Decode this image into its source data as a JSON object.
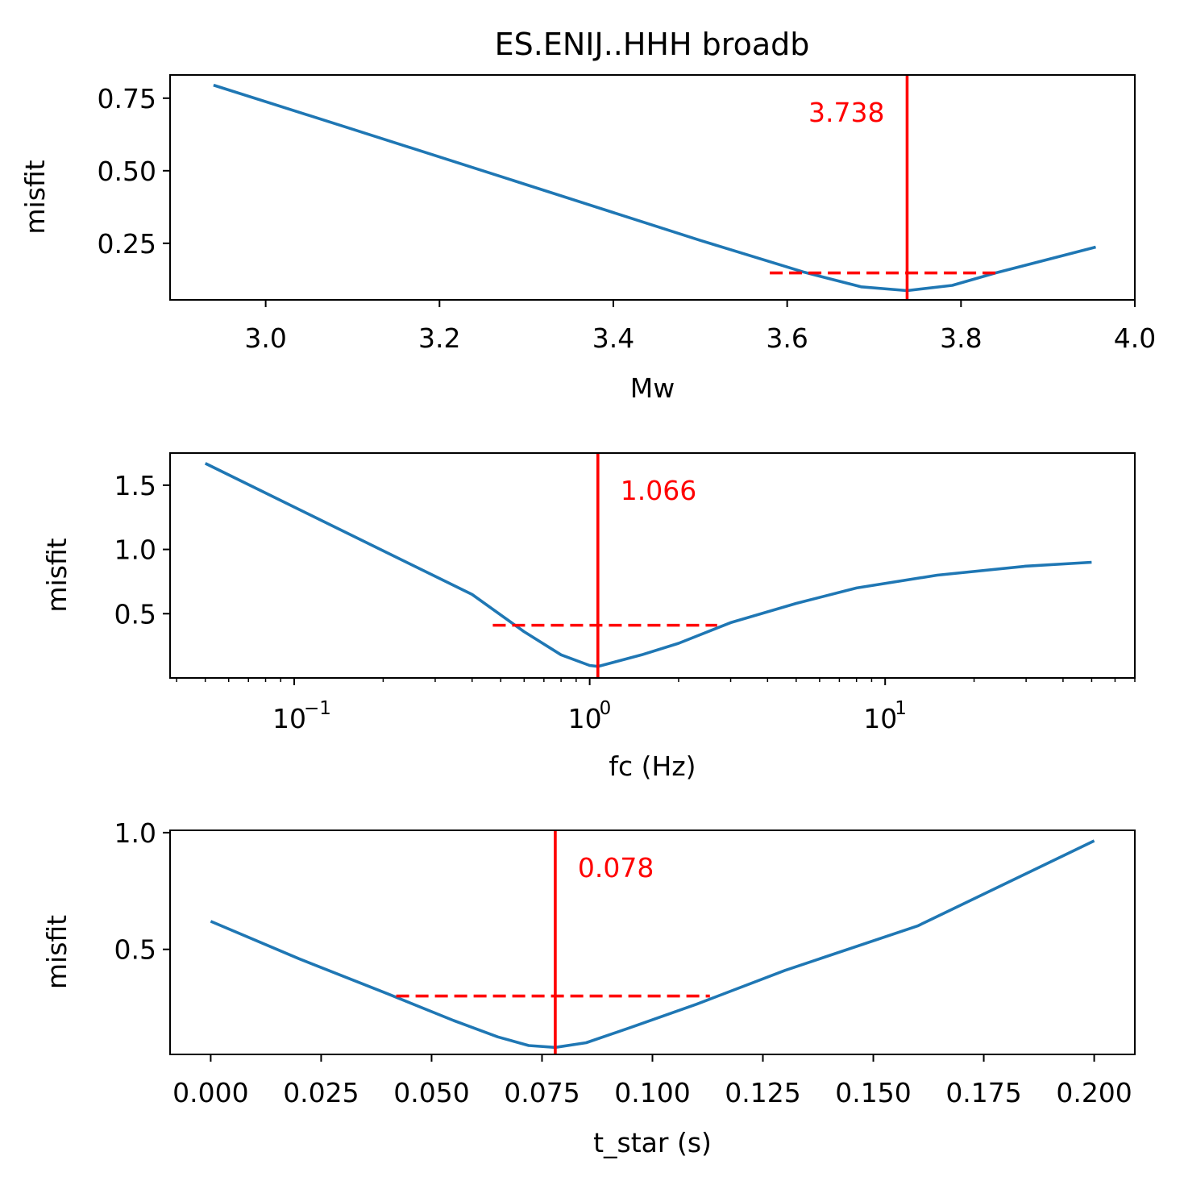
{
  "figure_title": "ES.ENIJ..HHH broadb",
  "colors": {
    "curve": "#1f77b4",
    "marker": "#ff0000",
    "axes": "#000000"
  },
  "chart_data": [
    {
      "type": "line",
      "title": "ES.ENIJ..HHH broadb",
      "xlabel": "Mw",
      "ylabel": "misfit",
      "xscale": "linear",
      "xlim": [
        2.89,
        4.0
      ],
      "ylim": [
        0.055,
        0.83
      ],
      "xticks": [
        3.0,
        3.2,
        3.4,
        3.6,
        3.8,
        4.0
      ],
      "xtick_labels": [
        "3.0",
        "3.2",
        "3.4",
        "3.6",
        "3.8",
        "4.0"
      ],
      "yticks": [
        0.25,
        0.5,
        0.75
      ],
      "ytick_labels": [
        "0.25",
        "0.50",
        "0.75"
      ],
      "series": [
        {
          "x": [
            2.94,
            3.1,
            3.3,
            3.5,
            3.62,
            3.685,
            3.738,
            3.79,
            3.84,
            3.955
          ],
          "y": [
            0.795,
            0.643,
            0.452,
            0.26,
            0.15,
            0.1,
            0.087,
            0.105,
            0.148,
            0.237
          ]
        }
      ],
      "best_value": 3.738,
      "best_label": "3.738",
      "best_label_side": "left",
      "uncertainty_range": [
        3.58,
        3.845
      ],
      "uncertainty_level": 0.148,
      "grid": false
    },
    {
      "type": "line",
      "xlabel": "fc (Hz)",
      "ylabel": "misfit",
      "xscale": "log",
      "xlim": [
        0.038,
        70
      ],
      "ylim": [
        0.0,
        1.75
      ],
      "xticks": [
        0.1,
        1,
        10
      ],
      "xtick_labels": [
        "10",
        "10",
        "10"
      ],
      "xtick_exponents": [
        "−1",
        "0",
        "1"
      ],
      "yticks": [
        0.5,
        1.0,
        1.5
      ],
      "ytick_labels": [
        "0.5",
        "1.0",
        "1.5"
      ],
      "series": [
        {
          "x": [
            0.05,
            0.1,
            0.2,
            0.4,
            0.6,
            0.8,
            1.0,
            1.066,
            1.5,
            2.0,
            3.0,
            5.0,
            8.0,
            15.0,
            30.0,
            50.0
          ],
          "y": [
            1.67,
            1.33,
            0.99,
            0.65,
            0.36,
            0.18,
            0.097,
            0.09,
            0.18,
            0.27,
            0.43,
            0.58,
            0.7,
            0.8,
            0.87,
            0.9
          ]
        }
      ],
      "best_value": 1.066,
      "best_label": "1.066",
      "best_label_side": "right",
      "uncertainty_range": [
        0.47,
        2.7
      ],
      "uncertainty_level": 0.41,
      "grid": false
    },
    {
      "type": "line",
      "xlabel": "t_star (s)",
      "ylabel": "misfit",
      "xscale": "linear",
      "xlim": [
        -0.0092,
        0.2092
      ],
      "ylim": [
        0.05,
        1.01
      ],
      "xticks": [
        0.0,
        0.025,
        0.05,
        0.075,
        0.1,
        0.125,
        0.15,
        0.175,
        0.2
      ],
      "xtick_labels": [
        "0.000",
        "0.025",
        "0.050",
        "0.075",
        "0.100",
        "0.125",
        "0.150",
        "0.175",
        "0.200"
      ],
      "yticks": [
        0.5,
        1.0
      ],
      "ytick_labels": [
        "0.5",
        "1.0"
      ],
      "series": [
        {
          "x": [
            0.0,
            0.02,
            0.04,
            0.055,
            0.065,
            0.072,
            0.078,
            0.085,
            0.095,
            0.11,
            0.13,
            0.16,
            0.2
          ],
          "y": [
            0.62,
            0.46,
            0.31,
            0.195,
            0.125,
            0.088,
            0.08,
            0.1,
            0.165,
            0.265,
            0.41,
            0.6,
            0.965
          ]
        }
      ],
      "best_value": 0.078,
      "best_label": "0.078",
      "best_label_side": "right",
      "uncertainty_range": [
        0.042,
        0.113
      ],
      "uncertainty_level": 0.3,
      "grid": false
    }
  ]
}
